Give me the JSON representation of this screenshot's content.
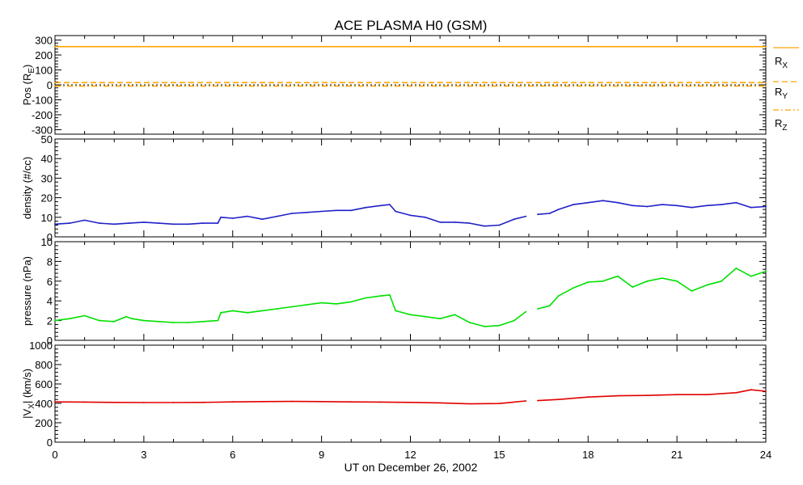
{
  "chart_data": {
    "type": "line",
    "title": "ACE PLASMA H0 (GSM)",
    "xlabel": "UT on December 26, 2002",
    "xlim": [
      0,
      24
    ],
    "x_ticks": [
      "0",
      "3",
      "6",
      "9",
      "12",
      "15",
      "18",
      "21",
      "24"
    ],
    "panels": [
      {
        "id": "pos",
        "ylabel": {
          "main": "Pos (R",
          "sub": "E",
          "end": ")"
        },
        "ylim": [
          -330,
          330
        ],
        "y_ticks": [
          "300",
          "200",
          "100",
          "0",
          "-100",
          "-200",
          "-300"
        ],
        "legend": [
          {
            "main": "R",
            "sub": "X"
          },
          {
            "main": "R",
            "sub": "Y"
          },
          {
            "main": "R",
            "sub": "Z"
          }
        ],
        "series": [
          {
            "name": "R_X",
            "color": "#ffa500",
            "style": "solid",
            "x": [
              0,
              24
            ],
            "values": [
              256,
              256
            ]
          },
          {
            "name": "R_Y",
            "color": "#ffa500",
            "style": "dash",
            "x": [
              0,
              24
            ],
            "values": [
              15,
              15
            ]
          },
          {
            "name": "R_Z",
            "color": "#ffa500",
            "style": "dashdot",
            "x": [
              0,
              24
            ],
            "values": [
              -8,
              -8
            ]
          }
        ]
      },
      {
        "id": "density",
        "ylabel": {
          "main": "density (#/cc)"
        },
        "ylim": [
          0,
          50
        ],
        "y_ticks": [
          "50",
          "40",
          "30",
          "20",
          "10",
          "0"
        ],
        "series": [
          {
            "name": "density",
            "color": "#2020c8",
            "x": [
              0,
              0.5,
              1.0,
              1.5,
              2.0,
              2.5,
              3.0,
              3.5,
              4.0,
              4.5,
              5.0,
              5.5,
              5.6,
              6.0,
              6.5,
              7.0,
              7.5,
              8.0,
              8.5,
              9.0,
              9.5,
              10.0,
              10.5,
              11.0,
              11.3,
              11.5,
              12.0,
              12.5,
              13.0,
              13.5,
              14.0,
              14.5,
              15.0,
              15.5,
              15.9,
              null,
              16.3,
              16.7,
              17.0,
              17.5,
              18.0,
              18.5,
              19.0,
              19.5,
              20.0,
              20.5,
              21.0,
              21.5,
              22.0,
              22.5,
              23.0,
              23.5,
              24.0
            ],
            "values": [
              6.5,
              7.0,
              8.5,
              7.0,
              6.5,
              7.0,
              7.5,
              7.0,
              6.5,
              6.5,
              7.0,
              7.0,
              10.0,
              9.5,
              10.5,
              9.0,
              10.5,
              12.0,
              12.5,
              13.0,
              13.5,
              13.5,
              15.0,
              16.0,
              16.5,
              13.0,
              11.0,
              10.0,
              7.5,
              7.5,
              7.0,
              5.5,
              6.0,
              9.0,
              10.5,
              null,
              11.5,
              12.0,
              14.0,
              16.5,
              17.5,
              18.5,
              17.5,
              16.0,
              15.5,
              16.5,
              16.0,
              15.0,
              16.0,
              16.5,
              17.5,
              15.0,
              15.5
            ]
          }
        ]
      },
      {
        "id": "pressure",
        "ylabel": {
          "main": "pressure (nPa)"
        },
        "ylim": [
          0,
          10
        ],
        "y_ticks": [
          "10",
          "8",
          "6",
          "4",
          "2",
          "0"
        ],
        "series": [
          {
            "name": "pressure",
            "color": "#00e000",
            "x": [
              0,
              0.5,
              1.0,
              1.5,
              2.0,
              2.4,
              2.6,
              3.0,
              3.5,
              4.0,
              4.5,
              5.0,
              5.5,
              5.6,
              6.0,
              6.5,
              7.0,
              7.5,
              8.0,
              8.5,
              9.0,
              9.5,
              10.0,
              10.5,
              11.0,
              11.3,
              11.5,
              12.0,
              12.5,
              13.0,
              13.5,
              14.0,
              14.5,
              15.0,
              15.5,
              15.9,
              null,
              16.3,
              16.7,
              17.0,
              17.5,
              18.0,
              18.5,
              19.0,
              19.5,
              20.0,
              20.5,
              21.0,
              21.5,
              22.0,
              22.5,
              23.0,
              23.5,
              24.0
            ],
            "values": [
              2.0,
              2.2,
              2.5,
              2.0,
              1.9,
              2.4,
              2.2,
              2.0,
              1.9,
              1.8,
              1.8,
              1.9,
              2.0,
              2.8,
              3.0,
              2.8,
              3.0,
              3.2,
              3.4,
              3.6,
              3.8,
              3.7,
              3.9,
              4.3,
              4.5,
              4.6,
              3.0,
              2.6,
              2.4,
              2.2,
              2.6,
              1.8,
              1.4,
              1.5,
              2.0,
              2.9,
              null,
              3.2,
              3.5,
              4.5,
              5.3,
              5.9,
              6.0,
              6.5,
              5.4,
              6.0,
              6.3,
              6.0,
              5.0,
              5.6,
              6.0,
              7.3,
              6.5,
              7.0
            ]
          }
        ]
      },
      {
        "id": "vx",
        "ylabel": {
          "main": "|V",
          "sub": "X",
          "end": "| (km/s)"
        },
        "ylim": [
          0,
          1000
        ],
        "y_ticks": [
          "1000",
          "800",
          "600",
          "400",
          "200",
          "0"
        ],
        "series": [
          {
            "name": "|V_X|",
            "color": "#e00000",
            "x": [
              0,
              1,
              2,
              3,
              4,
              5,
              6,
              7,
              8,
              9,
              10,
              11,
              12,
              13,
              14,
              15,
              15.9,
              null,
              16.3,
              17,
              18,
              19,
              20,
              21,
              22,
              23,
              23.5,
              24
            ],
            "values": [
              415,
              413,
              410,
              408,
              408,
              410,
              415,
              418,
              420,
              418,
              415,
              413,
              410,
              405,
              395,
              398,
              425,
              null,
              428,
              440,
              465,
              478,
              482,
              490,
              490,
              510,
              540,
              525
            ]
          }
        ]
      }
    ]
  }
}
